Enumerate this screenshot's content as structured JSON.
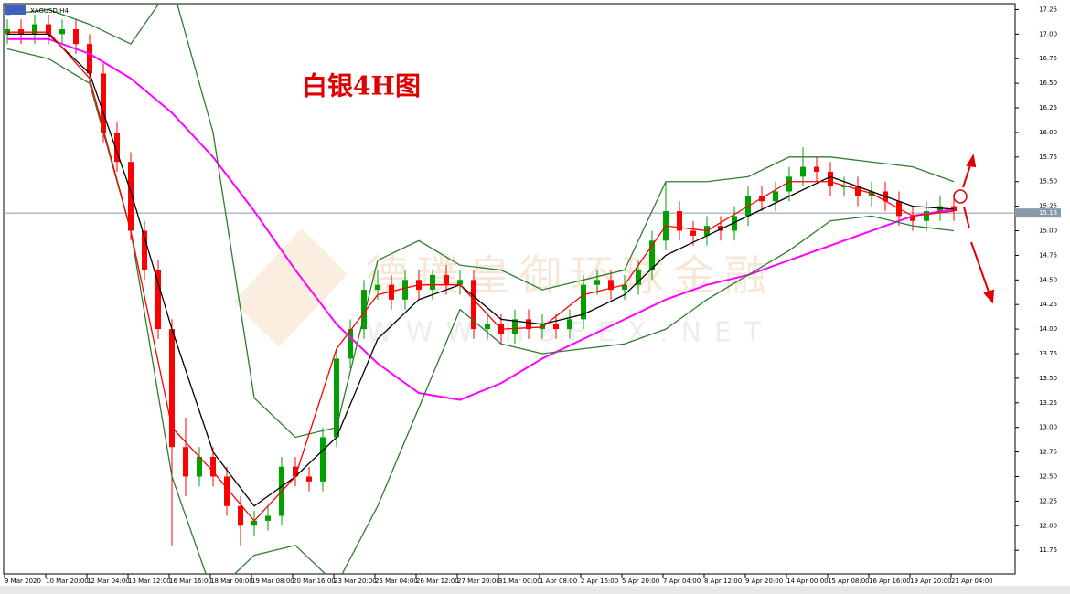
{
  "chart_data": {
    "type": "candlestick",
    "symbol": "XAGUSD,H4",
    "annotation": "白银4H图",
    "watermark": [
      "德璞皇御环球金融",
      "WWW.HBFEX.NET"
    ],
    "x_labels": [
      "9 Mar 2020",
      "10 Mar 20:00",
      "12 Mar 04:00",
      "13 Mar 12:00",
      "16 Mar 16:00",
      "18 Mar 00:00",
      "19 Mar 08:00",
      "20 Mar 16:00",
      "23 Mar 20:00",
      "25 Mar 04:00",
      "26 Mar 12:00",
      "27 Mar 20:00",
      "31 Mar 00:00",
      "1 Apr 08:00",
      "2 Apr 16:00",
      "5 Apr 20:00",
      "7 Apr 04:00",
      "8 Apr 12:00",
      "9 Apr 20:00",
      "14 Apr 00:00",
      "15 Apr 08:00",
      "16 Apr 16:00",
      "19 Apr 20:00",
      "21 Apr 04:00"
    ],
    "ylim": [
      11.51,
      17.31
    ],
    "yticks": [
      11.75,
      {
        "value": 12,
        "label": "12.00"
      },
      12.25,
      {
        "value": 12.5,
        "label": "12.50"
      },
      12.75,
      {
        "value": 13,
        "label": "13.00"
      },
      13.25,
      {
        "value": 13.5,
        "label": "13.50"
      },
      13.75,
      {
        "value": 14,
        "label": "14.00"
      },
      14.25,
      {
        "value": 14.5,
        "label": "14.50"
      },
      14.75,
      {
        "value": 15,
        "label": "15.00"
      },
      15.25,
      {
        "value": 15.5,
        "label": "15.50"
      },
      15.75,
      {
        "value": 16,
        "label": "16.00"
      },
      16.25,
      {
        "value": 16.5,
        "label": "16.50"
      },
      16.75,
      {
        "value": 17,
        "label": "17.00"
      },
      17.25
    ],
    "last_price": 15.18,
    "up_color": "#00a000",
    "down_color": "#ff0000",
    "open": [
      17.0,
      17.05,
      17.0,
      17.1,
      17.0,
      17.05,
      16.9,
      16.6,
      16.0,
      15.7,
      15.0,
      14.6,
      14.0,
      12.8,
      12.5,
      12.7,
      12.5,
      12.2,
      12.0,
      12.05,
      12.1,
      12.6,
      12.5,
      12.45,
      12.9,
      13.7,
      14.0,
      14.4,
      14.45,
      14.3,
      14.5,
      14.4,
      14.55,
      14.45,
      14.5,
      14.0,
      14.05,
      13.95,
      14.1,
      14.0,
      14.05,
      14.0,
      14.1,
      14.45,
      14.5,
      14.4,
      14.45,
      14.6,
      14.9,
      15.2,
      15.0,
      14.95,
      15.05,
      15.0,
      15.15,
      15.35,
      15.3,
      15.4,
      15.55,
      15.65,
      15.6,
      15.45,
      15.45,
      15.35,
      15.4,
      15.3,
      15.15,
      15.1,
      15.2,
      15.25
    ],
    "high": [
      17.15,
      17.15,
      17.2,
      17.2,
      17.15,
      17.15,
      17.0,
      16.7,
      16.1,
      15.8,
      15.1,
      14.7,
      14.1,
      13.1,
      12.8,
      12.8,
      12.6,
      12.3,
      12.15,
      12.2,
      12.7,
      12.7,
      12.6,
      13.0,
      13.8,
      14.1,
      14.5,
      14.6,
      14.55,
      14.6,
      14.6,
      14.6,
      14.65,
      14.6,
      14.6,
      14.15,
      14.15,
      14.2,
      14.2,
      14.15,
      14.15,
      14.2,
      14.55,
      14.6,
      14.6,
      14.55,
      14.7,
      15.0,
      15.5,
      15.3,
      15.1,
      15.15,
      15.15,
      15.25,
      15.45,
      15.45,
      15.5,
      15.65,
      15.85,
      15.75,
      15.7,
      15.55,
      15.55,
      15.5,
      15.5,
      15.4,
      15.25,
      15.3,
      15.35,
      15.35
    ],
    "low": [
      16.9,
      16.9,
      16.9,
      16.9,
      16.9,
      16.8,
      16.5,
      15.9,
      15.6,
      14.9,
      14.5,
      13.9,
      11.8,
      12.3,
      12.4,
      12.4,
      12.1,
      11.8,
      11.9,
      11.95,
      12.0,
      12.4,
      12.35,
      12.35,
      12.8,
      13.6,
      13.9,
      14.3,
      14.2,
      14.2,
      14.3,
      14.3,
      14.35,
      14.35,
      13.9,
      13.9,
      13.85,
      13.85,
      13.9,
      13.9,
      13.9,
      13.9,
      14.0,
      14.35,
      14.3,
      14.3,
      14.35,
      14.5,
      14.8,
      14.9,
      14.85,
      14.85,
      14.9,
      14.9,
      15.05,
      15.2,
      15.2,
      15.3,
      15.45,
      15.5,
      15.35,
      15.35,
      15.25,
      15.25,
      15.2,
      15.05,
      15.0,
      15.0,
      15.1,
      15.1
    ],
    "close": [
      17.05,
      17.0,
      17.1,
      17.0,
      17.05,
      16.9,
      16.6,
      16.0,
      15.7,
      15.0,
      14.6,
      14.0,
      12.8,
      12.5,
      12.7,
      12.5,
      12.2,
      12.0,
      12.05,
      12.1,
      12.6,
      12.5,
      12.45,
      12.9,
      13.7,
      14.0,
      14.4,
      14.45,
      14.3,
      14.5,
      14.4,
      14.55,
      14.45,
      14.5,
      14.0,
      14.05,
      13.95,
      14.1,
      14.0,
      14.05,
      14.0,
      14.1,
      14.45,
      14.5,
      14.4,
      14.45,
      14.6,
      14.9,
      15.2,
      15.0,
      14.95,
      15.05,
      15.0,
      15.15,
      15.35,
      15.3,
      15.4,
      15.55,
      15.65,
      15.6,
      15.45,
      15.45,
      15.35,
      15.4,
      15.3,
      15.15,
      15.1,
      15.2,
      15.25,
      15.2
    ],
    "indicators": [
      {
        "color": "#ff00ff",
        "x": [
          0,
          3,
          6,
          9,
          12,
          15,
          18,
          21,
          24,
          27,
          30,
          33,
          36,
          39,
          42,
          45,
          48,
          51,
          54,
          57,
          60,
          63,
          66,
          69
        ],
        "values": [
          16.95,
          16.95,
          16.8,
          16.55,
          16.2,
          15.75,
          15.2,
          14.6,
          14.05,
          13.65,
          13.35,
          13.28,
          13.45,
          13.7,
          13.9,
          14.1,
          14.3,
          14.45,
          14.55,
          14.7,
          14.85,
          15.0,
          15.15,
          15.22
        ]
      },
      {
        "color": "#2e7d2e",
        "x": [
          0,
          3,
          6,
          9,
          12,
          15,
          18,
          21,
          24,
          27,
          30,
          33,
          36,
          39,
          42,
          45,
          48,
          51,
          54,
          57,
          60,
          63,
          66,
          69
        ],
        "values": [
          17.2,
          17.25,
          17.1,
          16.9,
          17.5,
          16.0,
          13.3,
          12.9,
          13.0,
          14.7,
          14.9,
          14.65,
          14.6,
          14.4,
          14.5,
          14.6,
          15.5,
          15.5,
          15.55,
          15.75,
          15.75,
          15.7,
          15.65,
          15.5
        ]
      },
      {
        "color": "#2e7d2e",
        "x": [
          0,
          3,
          6,
          9,
          12,
          15,
          18,
          21,
          24,
          27,
          30,
          33,
          36,
          39,
          42,
          45,
          48,
          51,
          54,
          57,
          60,
          63,
          66,
          69
        ],
        "values": [
          16.85,
          16.75,
          16.5,
          15.0,
          12.5,
          11.3,
          11.7,
          11.8,
          11.4,
          12.2,
          13.2,
          14.2,
          13.85,
          13.75,
          13.8,
          13.85,
          14.0,
          14.3,
          14.55,
          14.8,
          15.1,
          15.15,
          15.05,
          15.0
        ]
      },
      {
        "color": "#000000",
        "x": [
          0,
          3,
          6,
          9,
          12,
          15,
          18,
          21,
          24,
          27,
          30,
          33,
          36,
          39,
          42,
          45,
          48,
          51,
          54,
          57,
          60,
          63,
          66,
          69
        ],
        "values": [
          17.0,
          17.0,
          16.6,
          15.4,
          14.0,
          12.75,
          12.2,
          12.5,
          12.9,
          13.9,
          14.3,
          14.45,
          14.1,
          14.05,
          14.15,
          14.35,
          14.75,
          14.95,
          15.15,
          15.35,
          15.55,
          15.4,
          15.25,
          15.22
        ]
      },
      {
        "color": "#ff0000",
        "x": [
          0,
          3,
          6,
          9,
          12,
          15,
          18,
          21,
          24,
          27,
          30,
          33,
          36,
          39,
          42,
          45,
          48,
          51,
          54,
          57,
          60,
          63,
          66,
          69
        ],
        "values": [
          17.02,
          17.02,
          16.55,
          15.0,
          13.0,
          12.55,
          12.05,
          12.5,
          13.8,
          14.35,
          14.45,
          14.45,
          14.0,
          14.02,
          14.35,
          14.45,
          15.05,
          15.0,
          15.25,
          15.5,
          15.5,
          15.38,
          15.15,
          15.2
        ]
      }
    ]
  }
}
